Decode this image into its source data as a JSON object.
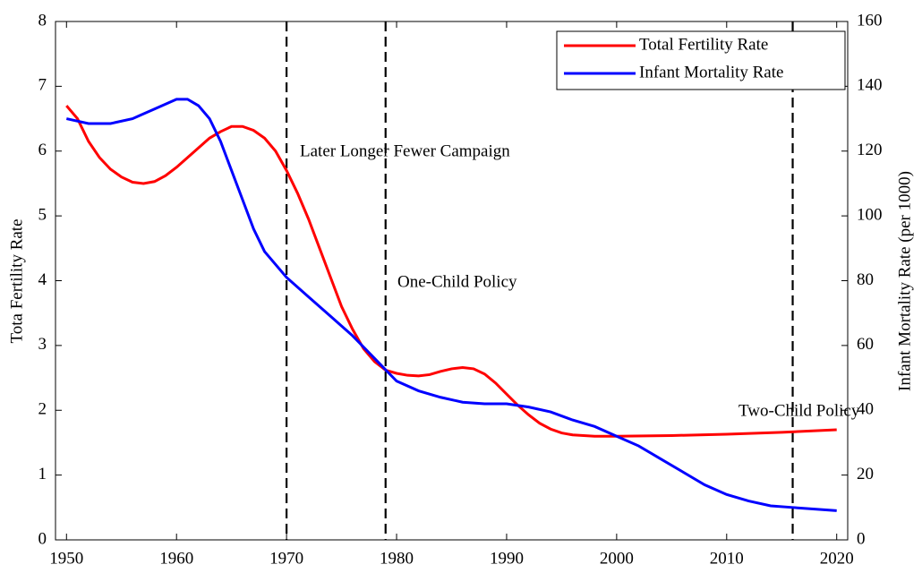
{
  "chart_data": {
    "type": "line",
    "x_series_note_free": null,
    "ylabel": "Tota Fertility Rate",
    "y2label": "Infant Mortality Rate (per 1000)",
    "xlim": [
      1949,
      2021
    ],
    "xticks": [
      1950,
      1960,
      1970,
      1980,
      1990,
      2000,
      2010,
      2020
    ],
    "ylim": [
      0,
      8
    ],
    "yticks": [
      0,
      1,
      2,
      3,
      4,
      5,
      6,
      7,
      8
    ],
    "y2lim": [
      0,
      160
    ],
    "y2ticks": [
      0,
      20,
      40,
      60,
      80,
      100,
      120,
      140,
      160
    ],
    "grid": false,
    "legend": "upper right",
    "vlines": [
      1970,
      1979,
      2016
    ],
    "annotations": [
      "Later Longer Fewer Campaign",
      "One-Child Policy",
      "Two-Child Policy"
    ],
    "series": [
      {
        "name": "Total Fertility Rate",
        "color": "#ff0000",
        "x": [
          1950,
          1951,
          1952,
          1953,
          1954,
          1955,
          1956,
          1957,
          1958,
          1959,
          1960,
          1961,
          1962,
          1963,
          1964,
          1965,
          1966,
          1967,
          1968,
          1969,
          1970,
          1971,
          1972,
          1973,
          1974,
          1975,
          1976,
          1977,
          1978,
          1979,
          1980,
          1981,
          1982,
          1983,
          1984,
          1985,
          1986,
          1987,
          1988,
          1989,
          1990,
          1991,
          1992,
          1993,
          1994,
          1995,
          1996,
          1997,
          1998,
          2000,
          2005,
          2010,
          2015,
          2020
        ],
        "values": [
          6.7,
          6.5,
          6.15,
          5.9,
          5.72,
          5.6,
          5.52,
          5.5,
          5.53,
          5.62,
          5.75,
          5.9,
          6.05,
          6.2,
          6.3,
          6.38,
          6.38,
          6.32,
          6.2,
          6.0,
          5.7,
          5.35,
          4.95,
          4.5,
          4.05,
          3.6,
          3.25,
          2.95,
          2.75,
          2.62,
          2.57,
          2.54,
          2.53,
          2.55,
          2.6,
          2.64,
          2.66,
          2.64,
          2.56,
          2.42,
          2.25,
          2.08,
          1.93,
          1.8,
          1.71,
          1.65,
          1.62,
          1.61,
          1.6,
          1.6,
          1.61,
          1.63,
          1.66,
          1.7
        ]
      },
      {
        "name": "Infant Mortality Rate",
        "color": "#0000ff",
        "axis": "y2",
        "x": [
          1950,
          1952,
          1954,
          1956,
          1958,
          1960,
          1961,
          1962,
          1963,
          1964,
          1965,
          1966,
          1967,
          1968,
          1970,
          1972,
          1974,
          1976,
          1978,
          1980,
          1982,
          1984,
          1986,
          1988,
          1990,
          1992,
          1994,
          1996,
          1998,
          2000,
          2002,
          2004,
          2006,
          2008,
          2010,
          2012,
          2014,
          2016,
          2018,
          2020
        ],
        "values": [
          130,
          128.5,
          128.5,
          130,
          133,
          136,
          136,
          134,
          130,
          123,
          114,
          105,
          96,
          89,
          81,
          75,
          69,
          63,
          56,
          49,
          46,
          44,
          42.5,
          42,
          42,
          41,
          39.5,
          37,
          35,
          32,
          29,
          25,
          21,
          17,
          14,
          12,
          10.5,
          10,
          9.5,
          9
        ]
      }
    ]
  }
}
